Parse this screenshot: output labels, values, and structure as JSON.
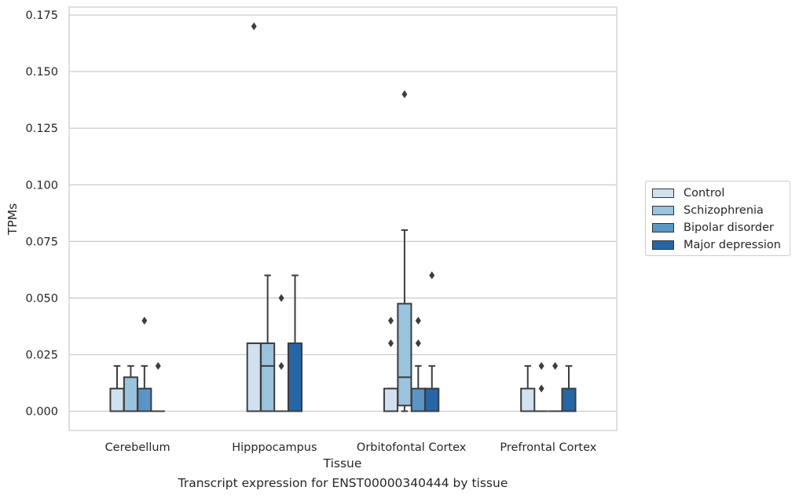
{
  "chart_data": {
    "type": "box",
    "xlabel": "Tissue",
    "ylabel": "TPMs",
    "caption": "Transcript expression for ENST00000340444 by tissue",
    "ylim": [
      -0.0085,
      0.1785
    ],
    "yticks": [
      0.0,
      0.025,
      0.05,
      0.075,
      0.1,
      0.125,
      0.15,
      0.175
    ],
    "ytick_labels": [
      "0.000",
      "0.025",
      "0.050",
      "0.075",
      "0.100",
      "0.125",
      "0.150",
      "0.175"
    ],
    "grid": "horizontal",
    "legend_position": "right",
    "categories": [
      "Cerebellum",
      "Hipppocampus",
      "Orbitofontal Cortex",
      "Prefrontal Cortex"
    ],
    "series": [
      {
        "name": "Control",
        "color": "#d1e1f0",
        "boxes": [
          {
            "q1": 0.0,
            "median": 0.0,
            "q3": 0.01,
            "whislo": 0.0,
            "whishi": 0.02,
            "fliers": []
          },
          {
            "q1": 0.0,
            "median": 0.0,
            "q3": 0.03,
            "whislo": 0.0,
            "whishi": 0.03,
            "fliers": [
              0.17
            ]
          },
          {
            "q1": 0.0,
            "median": 0.0,
            "q3": 0.01,
            "whislo": 0.0,
            "whishi": 0.01,
            "fliers": [
              0.03,
              0.04
            ]
          },
          {
            "q1": 0.0,
            "median": 0.0,
            "q3": 0.01,
            "whislo": 0.0,
            "whishi": 0.02,
            "fliers": []
          }
        ]
      },
      {
        "name": "Schizophrenia",
        "color": "#9ac3de",
        "boxes": [
          {
            "q1": 0.0,
            "median": 0.0,
            "q3": 0.015,
            "whislo": 0.0,
            "whishi": 0.02,
            "fliers": []
          },
          {
            "q1": 0.0,
            "median": 0.02,
            "q3": 0.03,
            "whislo": 0.0,
            "whishi": 0.06,
            "fliers": []
          },
          {
            "q1": 0.0025,
            "median": 0.015,
            "q3": 0.0475,
            "whislo": 0.0,
            "whishi": 0.08,
            "fliers": [
              0.14
            ]
          },
          {
            "q1": 0.0,
            "median": 0.0,
            "q3": 0.0,
            "whislo": 0.0,
            "whishi": 0.0,
            "fliers": [
              0.01,
              0.02
            ]
          }
        ]
      },
      {
        "name": "Bipolar disorder",
        "color": "#5996c5",
        "boxes": [
          {
            "q1": 0.0,
            "median": 0.0,
            "q3": 0.01,
            "whislo": 0.0,
            "whishi": 0.02,
            "fliers": [
              0.04
            ]
          },
          {
            "q1": 0.0,
            "median": 0.0,
            "q3": 0.0,
            "whislo": 0.0,
            "whishi": 0.0,
            "fliers": [
              0.02,
              0.05
            ]
          },
          {
            "q1": 0.0,
            "median": 0.0,
            "q3": 0.01,
            "whislo": 0.0,
            "whishi": 0.02,
            "fliers": [
              0.03,
              0.04
            ]
          },
          {
            "q1": 0.0,
            "median": 0.0,
            "q3": 0.0,
            "whislo": 0.0,
            "whishi": 0.0,
            "fliers": [
              0.02
            ]
          }
        ]
      },
      {
        "name": "Major depression",
        "color": "#2666a6",
        "boxes": [
          {
            "q1": 0.0,
            "median": 0.0,
            "q3": 0.0,
            "whislo": 0.0,
            "whishi": 0.0,
            "fliers": [
              0.02
            ]
          },
          {
            "q1": 0.0,
            "median": 0.0,
            "q3": 0.03,
            "whislo": 0.0,
            "whishi": 0.06,
            "fliers": []
          },
          {
            "q1": 0.0,
            "median": 0.0,
            "q3": 0.01,
            "whislo": 0.0,
            "whishi": 0.02,
            "fliers": [
              0.06
            ]
          },
          {
            "q1": 0.0,
            "median": 0.0,
            "q3": 0.01,
            "whislo": 0.0,
            "whishi": 0.02,
            "fliers": []
          }
        ]
      }
    ]
  }
}
